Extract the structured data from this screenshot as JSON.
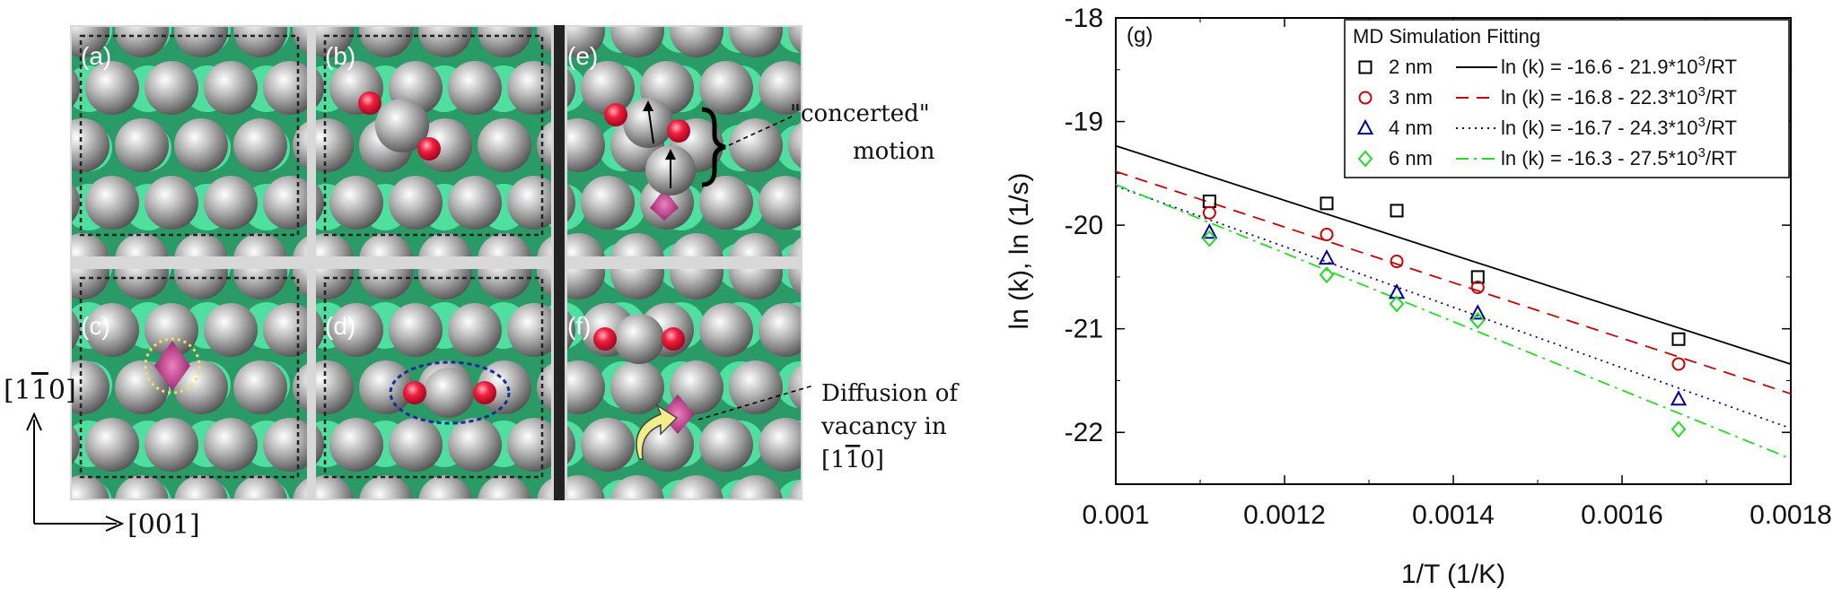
{
  "panels": {
    "a": "(a)",
    "b": "(b)",
    "c": "(c)",
    "d": "(d)",
    "e": "(e)",
    "f": "(f)"
  },
  "annotations": {
    "concerted_line1": "\"concerted\"",
    "concerted_line2": "motion",
    "diffusion_line1": "Diffusion of",
    "diffusion_line2": "vacancy in",
    "diffusion_line3_pre": "[1",
    "diffusion_line3_bar": "1",
    "diffusion_line3_post": "0]",
    "axis_vertical_pre": "[1",
    "axis_vertical_bar": "1",
    "axis_vertical_post": "0]",
    "axis_horizontal": "[001]"
  },
  "colors": {
    "substrate": "#3fcf8e",
    "atom": "#9a9a9a",
    "oxygen": "#e8203c",
    "vacancy": "#b0307a"
  },
  "chart_data": {
    "type": "scatter",
    "panel_label": "(g)",
    "xlabel": "1/T (1/K)",
    "ylabel": "ln (k), ln (1/s)",
    "xlim": [
      0.001,
      0.0018
    ],
    "ylim": [
      -22.5,
      -18
    ],
    "xticks": [
      "0.001",
      "0.0012",
      "0.0014",
      "0.0016",
      "0.0018"
    ],
    "yticks": [
      "-18",
      "-19",
      "-20",
      "-21",
      "-22"
    ],
    "legend_title": "MD Simulation Fitting",
    "legend_position": "top-right",
    "grid": false,
    "series": [
      {
        "name": "2 nm",
        "fit_label": "ln (k) = -16.6 - 21.9*10",
        "color": "#000000",
        "marker": "square",
        "dash": "solid",
        "intercept": -16.6,
        "slope": -2634,
        "x": [
          0.001111,
          0.00125,
          0.001333,
          0.001429,
          0.001667
        ],
        "y": [
          -19.77,
          -19.79,
          -19.86,
          -20.5,
          -21.1
        ]
      },
      {
        "name": "3 nm",
        "fit_label": "ln (k) = -16.8 - 22.3*10",
        "color": "#cc0000",
        "marker": "circle",
        "dash": "dashed",
        "intercept": -16.8,
        "slope": -2682,
        "x": [
          0.001111,
          0.00125,
          0.001333,
          0.001429,
          0.001667
        ],
        "y": [
          -19.88,
          -20.09,
          -20.35,
          -20.6,
          -21.34
        ]
      },
      {
        "name": "4 nm",
        "fit_label": "ln (k) = -16.7 - 24.3*10",
        "color": "#000099",
        "marker": "triangle",
        "dash": "dotted",
        "intercept": -16.7,
        "slope": -2923,
        "x": [
          0.001111,
          0.00125,
          0.001333,
          0.001429,
          0.001667
        ],
        "y": [
          -20.07,
          -20.32,
          -20.65,
          -20.85,
          -21.68
        ]
      },
      {
        "name": "6 nm",
        "fit_label": "ln (k) = -16.3 - 27.5*10",
        "color": "#22dd22",
        "marker": "diamond",
        "dash": "dashdot",
        "intercept": -16.3,
        "slope": -3308,
        "x": [
          0.001111,
          0.00125,
          0.001333,
          0.001429,
          0.001667
        ],
        "y": [
          -20.13,
          -20.48,
          -20.76,
          -20.92,
          -21.97
        ]
      }
    ],
    "fit_exponent": "3",
    "fit_suffix": "/RT"
  }
}
